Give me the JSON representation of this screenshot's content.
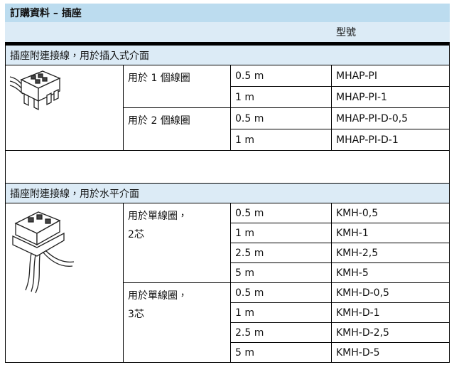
{
  "header": {
    "title": "訂購資料 – 插座",
    "column_label": "型號"
  },
  "sections": [
    {
      "title": "插座附連接線，用於插入式介面",
      "groups": [
        {
          "label_lines": [
            "用於 1 個線圈"
          ],
          "rows": [
            [
              "0.5 m",
              "MHAP-PI"
            ],
            [
              "1 m",
              "MHAP-PI-1"
            ]
          ]
        },
        {
          "label_lines": [
            "用於 2 個線圈"
          ],
          "rows": [
            [
              "0.5 m",
              "MHAP-PI-D-0,5"
            ],
            [
              "1 m",
              "MHAP-PI-D-1"
            ]
          ]
        }
      ]
    },
    {
      "title": "插座附連接線，用於水平介面",
      "groups": [
        {
          "label_lines": [
            "用於單線圈，",
            "2芯"
          ],
          "rows": [
            [
              "0.5 m",
              "KMH-0,5"
            ],
            [
              "1 m",
              "KMH-1"
            ],
            [
              "2.5 m",
              "KMH-2,5"
            ],
            [
              "5 m",
              "KMH-5"
            ]
          ]
        },
        {
          "label_lines": [
            "用於單線圈，",
            "3芯"
          ],
          "rows": [
            [
              "0.5 m",
              "KMH-D-0,5"
            ],
            [
              "1 m",
              "KMH-D-1"
            ],
            [
              "2.5 m",
              "KMH-D-2,5"
            ],
            [
              "5 m",
              "KMH-D-5"
            ]
          ]
        }
      ]
    }
  ]
}
